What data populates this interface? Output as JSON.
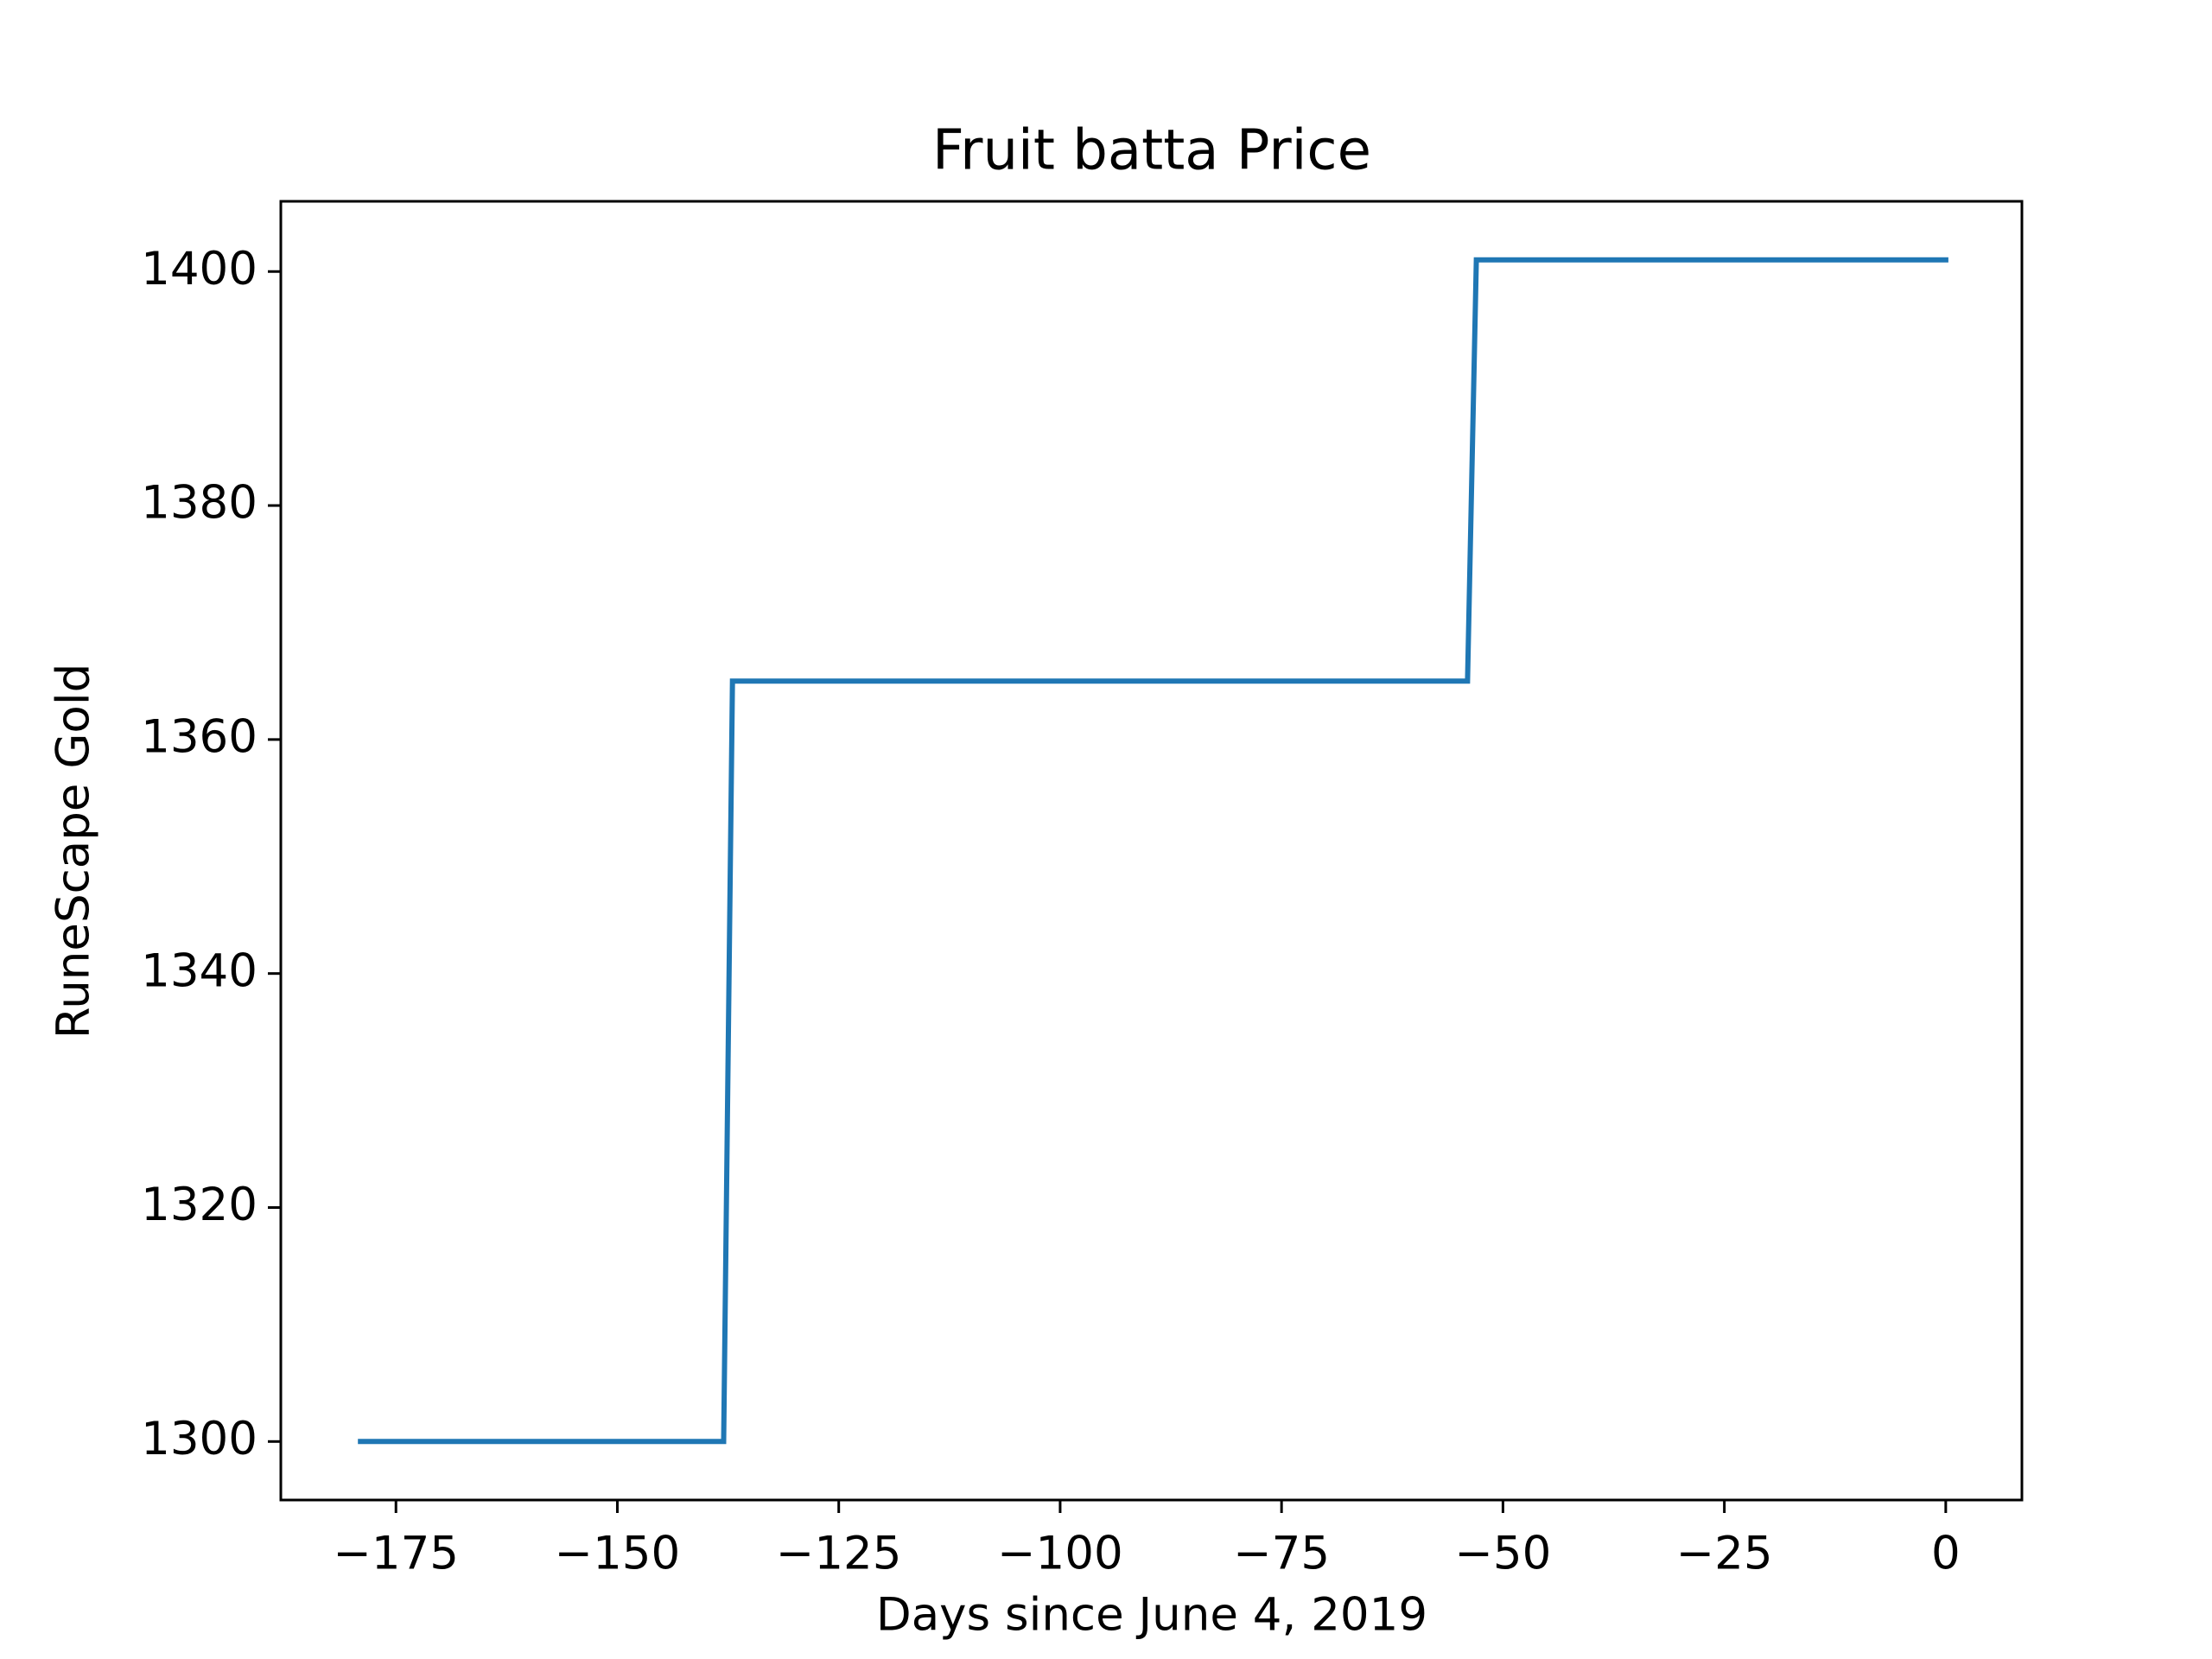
{
  "chart_data": {
    "type": "line",
    "title": "Fruit batta Price",
    "xlabel": "Days since June 4, 2019",
    "ylabel": "RuneScape Gold",
    "xlim": [
      -188,
      8.6
    ],
    "ylim": [
      1295,
      1406
    ],
    "xticks": [
      -175,
      -150,
      -125,
      -100,
      -75,
      -50,
      -25,
      0
    ],
    "xtick_labels": [
      "−175",
      "−150",
      "−125",
      "−100",
      "−75",
      "−50",
      "−25",
      "0"
    ],
    "yticks": [
      1300,
      1320,
      1340,
      1360,
      1380,
      1400
    ],
    "ytick_labels": [
      "1300",
      "1320",
      "1340",
      "1360",
      "1380",
      "1400"
    ],
    "grid": false,
    "series": [
      {
        "color": "#1f77b4",
        "x": [
          -179,
          -138,
          -137,
          -54,
          -53,
          0
        ],
        "y": [
          1300,
          1300,
          1365,
          1365,
          1401,
          1401
        ]
      }
    ]
  }
}
